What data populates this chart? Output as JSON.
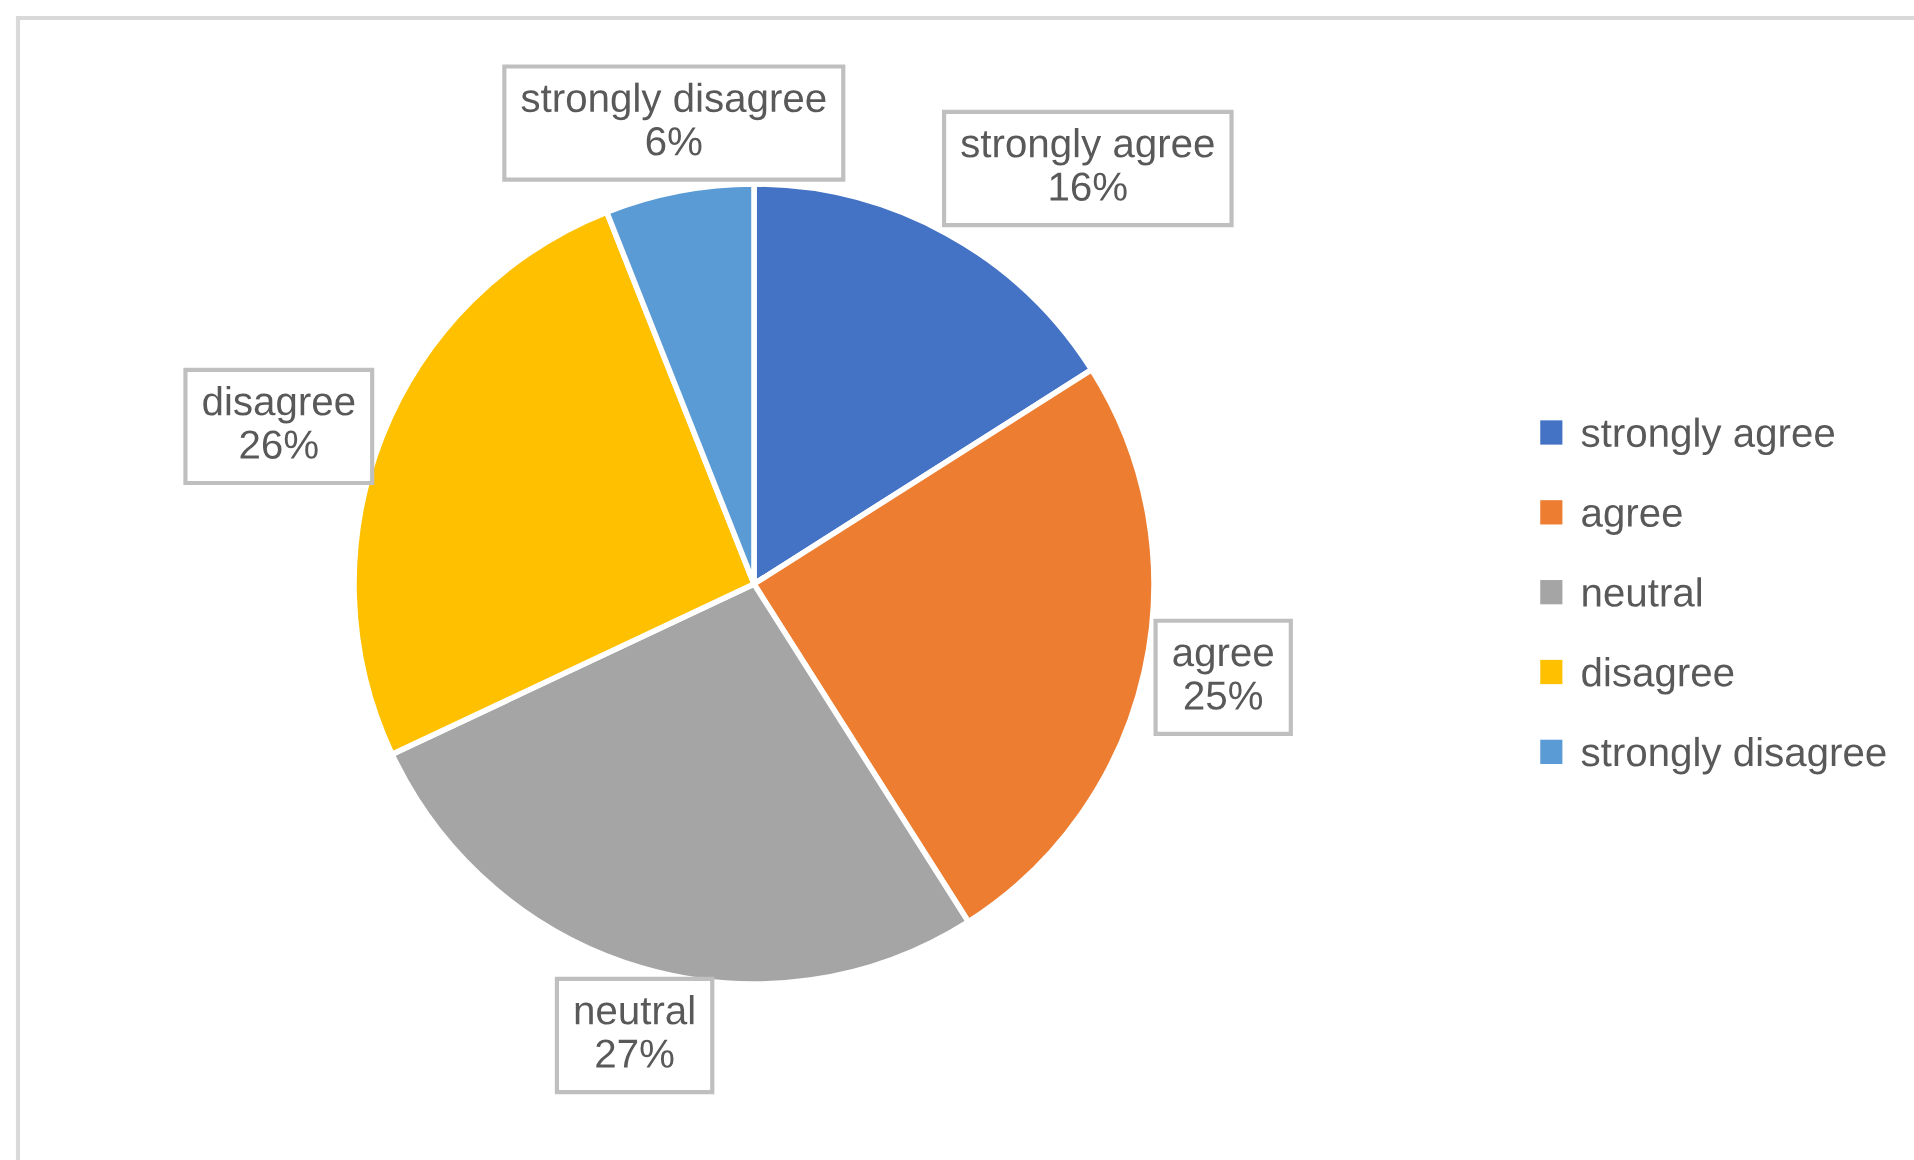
{
  "chart_data": {
    "type": "pie",
    "categories": [
      "strongly agree",
      "agree",
      "neutral",
      "disagree",
      "strongly disagree"
    ],
    "values": [
      16,
      25,
      27,
      26,
      6
    ],
    "colors": [
      "#4472c4",
      "#ed7d31",
      "#a5a5a5",
      "#ffc000",
      "#5b9bd5"
    ],
    "value_labels": [
      "16%",
      "25%",
      "27%",
      "26%",
      "6%"
    ],
    "legend": "right"
  }
}
